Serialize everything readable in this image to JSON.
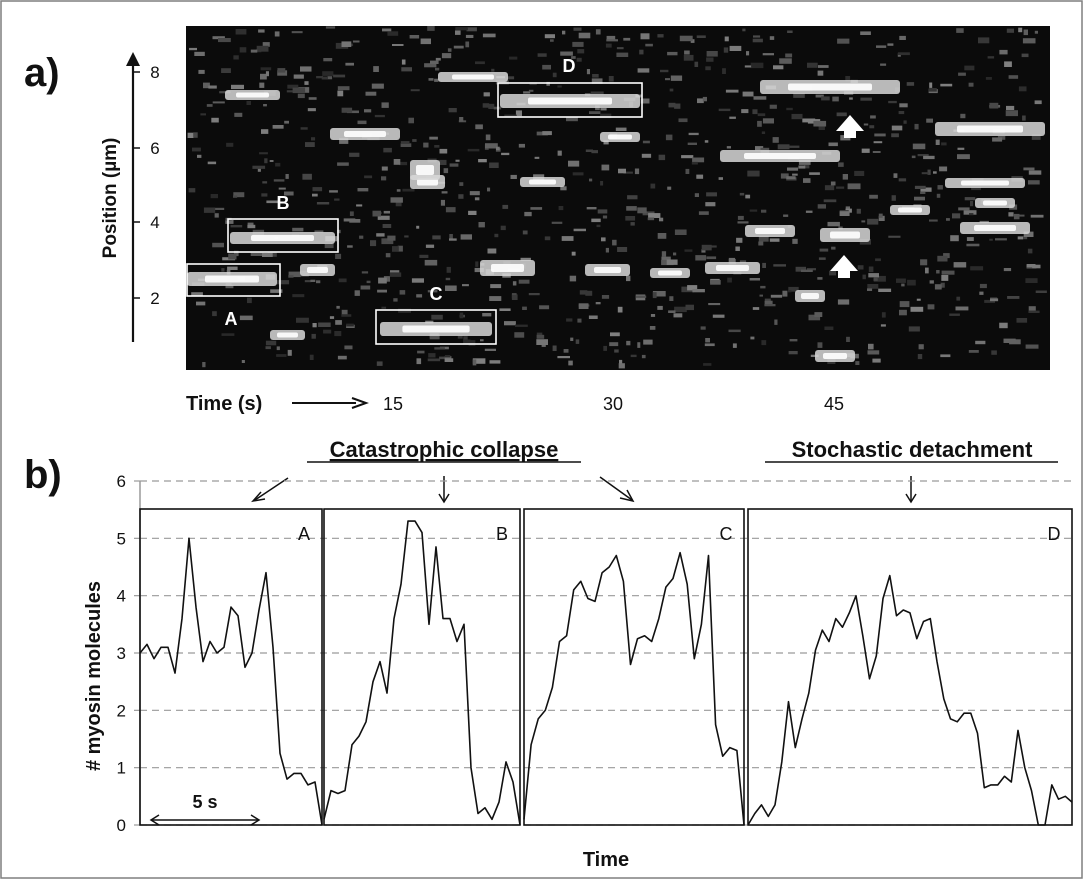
{
  "panel_a": {
    "label": "a)",
    "ylabel": "Position (µm)",
    "yticks": [
      "2",
      "4",
      "6",
      "8"
    ],
    "time_label": "Time (s)",
    "time_arrow": "⟶",
    "xticks": [
      "15",
      "30",
      "45"
    ],
    "boxes": [
      "A",
      "B",
      "C",
      "D"
    ]
  },
  "panel_b": {
    "label": "b)",
    "group1": "Catastrophic collapse",
    "group2": "Stochastic detachment",
    "ylabel": "# myosin molecules",
    "xlabel": "Time",
    "scale_label": "5 s"
  },
  "chart_data": {
    "type": "line",
    "ylabel": "# myosin molecules",
    "xlabel": "Time",
    "ylim": [
      0,
      6
    ],
    "yticks": [
      0,
      1,
      2,
      3,
      4,
      5,
      6
    ],
    "grid": "horizontal dashed",
    "series": [
      {
        "name": "A",
        "values": [
          3.0,
          3.15,
          2.9,
          3.1,
          3.1,
          2.65,
          3.6,
          5.0,
          3.8,
          2.85,
          3.2,
          3.0,
          3.1,
          3.8,
          3.65,
          2.75,
          3.0,
          3.75,
          4.4,
          3.1,
          1.25,
          0.8,
          0.9,
          0.9,
          0.7,
          0.75,
          0.0
        ]
      },
      {
        "name": "B",
        "values": [
          0.1,
          0.6,
          0.55,
          0.6,
          1.4,
          1.55,
          1.8,
          2.5,
          2.85,
          2.3,
          3.6,
          4.2,
          5.3,
          5.3,
          5.1,
          3.5,
          4.85,
          3.6,
          3.6,
          3.2,
          3.5,
          1.0,
          0.2,
          0.3,
          0.1,
          0.4,
          1.1,
          0.75,
          0.0
        ]
      },
      {
        "name": "C",
        "values": [
          0.1,
          1.4,
          1.85,
          2.0,
          2.4,
          3.2,
          3.3,
          4.1,
          4.25,
          3.95,
          3.9,
          4.4,
          4.5,
          4.7,
          4.25,
          2.8,
          3.25,
          3.3,
          3.2,
          3.6,
          4.15,
          4.3,
          4.75,
          4.2,
          2.9,
          3.5,
          4.7,
          1.75,
          1.2,
          1.35,
          1.3,
          0.0
        ]
      },
      {
        "name": "D",
        "values": [
          0.0,
          0.2,
          0.35,
          0.15,
          0.35,
          1.1,
          2.15,
          1.35,
          1.85,
          2.3,
          3.05,
          3.4,
          3.2,
          3.6,
          3.45,
          3.7,
          4.0,
          3.3,
          2.55,
          2.95,
          3.95,
          4.35,
          3.65,
          3.75,
          3.7,
          3.25,
          3.55,
          3.6,
          2.85,
          2.2,
          1.85,
          1.8,
          1.95,
          1.95,
          1.6,
          0.65,
          0.7,
          0.7,
          0.85,
          0.75,
          1.65,
          1.0,
          0.6,
          0.0,
          0.0,
          0.7,
          0.45,
          0.5,
          0.4
        ]
      }
    ]
  }
}
